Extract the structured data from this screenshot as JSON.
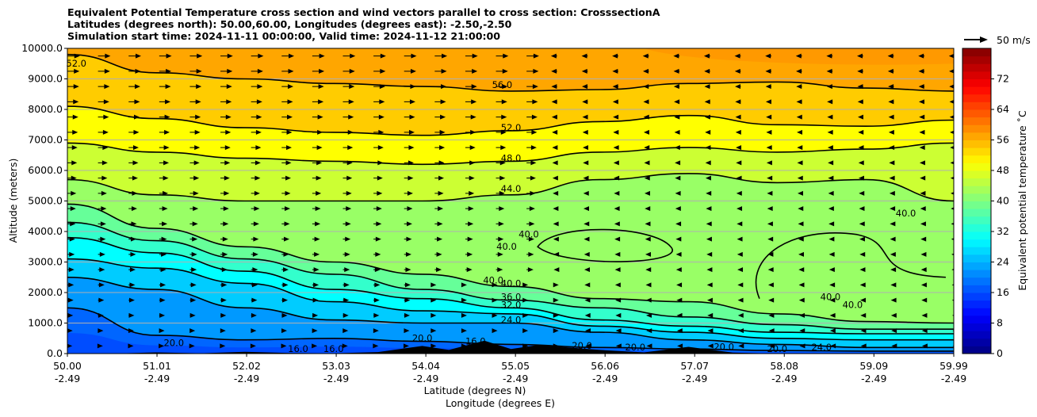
{
  "chart_data": {
    "type": "contourf",
    "title_lines": [
      "Equivalent Potential Temperature cross section and wind vectors parallel to cross section: CrosssectionA",
      "Latitudes (degrees north): 50.00,60.00, Longitudes (degrees east): -2.50,-2.50",
      "Simulation start time: 2024-11-11 00:00:00, Valid time: 2024-11-12 21:00:00"
    ],
    "xlabel": "Latitude (degrees N)",
    "xlabel2": "Longitude (degrees E)",
    "ylabel": "Altitude (meters)",
    "xlim": [
      50.0,
      59.99
    ],
    "ylim": [
      0,
      10000
    ],
    "x_ticks": [
      {
        "lat": "50.00",
        "lon": "-2.49",
        "value": 50.0
      },
      {
        "lat": "51.01",
        "lon": "-2.49",
        "value": 51.01
      },
      {
        "lat": "52.02",
        "lon": "-2.49",
        "value": 52.02
      },
      {
        "lat": "53.03",
        "lon": "-2.49",
        "value": 53.03
      },
      {
        "lat": "54.04",
        "lon": "-2.49",
        "value": 54.04
      },
      {
        "lat": "55.05",
        "lon": "-2.49",
        "value": 55.05
      },
      {
        "lat": "56.06",
        "lon": "-2.49",
        "value": 56.06
      },
      {
        "lat": "57.07",
        "lon": "-2.49",
        "value": 57.07
      },
      {
        "lat": "58.08",
        "lon": "-2.49",
        "value": 58.08
      },
      {
        "lat": "59.09",
        "lon": "-2.49",
        "value": 59.09
      },
      {
        "lat": "59.99",
        "lon": "-2.49",
        "value": 59.99
      }
    ],
    "y_ticks": [
      "0.0",
      "1000.0",
      "2000.0",
      "3000.0",
      "4000.0",
      "5000.0",
      "6000.0",
      "7000.0",
      "8000.0",
      "9000.0",
      "10000.0"
    ],
    "colorbar": {
      "label": "Equivalent potential temperature ˚C",
      "min": 0,
      "max": 80,
      "step": 2,
      "ticks": [
        "0",
        "8",
        "16",
        "24",
        "32",
        "40",
        "48",
        "56",
        "64",
        "72"
      ]
    },
    "quiver_key": {
      "label": "50 m/s"
    },
    "contour_labels": [
      {
        "text": "56.0",
        "x": 54.9,
        "y": 8700
      },
      {
        "text": "52.0",
        "x": 55.0,
        "y": 7300
      },
      {
        "text": "48.0",
        "x": 55.0,
        "y": 6300
      },
      {
        "text": "44.0",
        "x": 55.0,
        "y": 5300
      },
      {
        "text": "40.0",
        "x": 55.2,
        "y": 3800
      },
      {
        "text": "40.0",
        "x": 54.95,
        "y": 3400
      },
      {
        "text": "40.0",
        "x": 54.8,
        "y": 2300
      },
      {
        "text": "40.0",
        "x": 55.0,
        "y": 2200
      },
      {
        "text": "36.0",
        "x": 55.0,
        "y": 1750
      },
      {
        "text": "32.0",
        "x": 55.0,
        "y": 1500
      },
      {
        "text": "24.0",
        "x": 55.0,
        "y": 1000
      },
      {
        "text": "40.0",
        "x": 59.45,
        "y": 4500
      },
      {
        "text": "40.0",
        "x": 58.6,
        "y": 1750
      },
      {
        "text": "40.0",
        "x": 58.85,
        "y": 1500
      },
      {
        "text": "24.0",
        "x": 58.5,
        "y": 100
      },
      {
        "text": "20.0",
        "x": 58.0,
        "y": 50
      },
      {
        "text": "20.0",
        "x": 57.4,
        "y": 120
      },
      {
        "text": "20.0",
        "x": 56.4,
        "y": 100
      },
      {
        "text": "20.0",
        "x": 55.8,
        "y": 150
      },
      {
        "text": "20.0",
        "x": 54.0,
        "y": 400
      },
      {
        "text": "16.0",
        "x": 53.0,
        "y": 50
      },
      {
        "text": "16.0",
        "x": 52.6,
        "y": 50
      },
      {
        "text": "20.0",
        "x": 51.2,
        "y": 250
      },
      {
        "text": "16.0",
        "x": 54.6,
        "y": 300
      },
      {
        "text": "52.0",
        "x": 50.1,
        "y": 9400
      }
    ],
    "series": [
      {
        "name": "56.0",
        "x": [
          50.0,
          51.0,
          52.0,
          53.0,
          54.0,
          55.0,
          56.0,
          57.0,
          58.0,
          59.0,
          59.99
        ],
        "y": [
          9800,
          9200,
          9000,
          8850,
          8750,
          8600,
          8650,
          8850,
          8900,
          8700,
          8600
        ]
      },
      {
        "name": "52.0",
        "x": [
          50.0,
          51.0,
          52.0,
          53.0,
          54.0,
          55.0,
          56.0,
          57.0,
          58.0,
          59.0,
          59.99
        ],
        "y": [
          8100,
          7700,
          7400,
          7250,
          7150,
          7300,
          7600,
          7800,
          7500,
          7450,
          7650
        ]
      },
      {
        "name": "48.0",
        "x": [
          50.0,
          51.0,
          52.0,
          53.0,
          54.0,
          55.0,
          56.0,
          57.0,
          58.0,
          59.0,
          59.99
        ],
        "y": [
          6900,
          6600,
          6400,
          6300,
          6200,
          6300,
          6600,
          6750,
          6600,
          6700,
          6900
        ]
      },
      {
        "name": "44.0",
        "x": [
          50.0,
          51.0,
          52.0,
          53.0,
          54.0,
          55.0,
          56.0,
          57.0,
          58.0,
          59.0,
          59.99
        ],
        "y": [
          5700,
          5200,
          5000,
          5000,
          5000,
          5200,
          5700,
          5900,
          5600,
          5700,
          5000
        ]
      },
      {
        "name": "40.0",
        "x": [
          50.0,
          51.0,
          52.0,
          53.0,
          54.0,
          55.0,
          56.0,
          57.0,
          58.0,
          59.0,
          59.99
        ],
        "y": [
          4900,
          4100,
          3500,
          3000,
          2600,
          2200,
          1800,
          1700,
          1300,
          1050,
          1000
        ]
      },
      {
        "name": "36.0",
        "x": [
          50.0,
          51.0,
          52.0,
          53.0,
          54.0,
          55.0,
          56.0,
          57.0,
          58.0,
          59.0,
          59.99
        ],
        "y": [
          4300,
          3700,
          3100,
          2600,
          2100,
          1750,
          1500,
          1200,
          950,
          800,
          800
        ]
      },
      {
        "name": "32.0",
        "x": [
          50.0,
          51.0,
          52.0,
          53.0,
          54.0,
          55.0,
          56.0,
          57.0,
          58.0,
          59.0,
          59.99
        ],
        "y": [
          3800,
          3300,
          2700,
          2100,
          1800,
          1500,
          1100,
          900,
          700,
          650,
          650
        ]
      },
      {
        "name": "28.0",
        "x": [
          50.0,
          51.0,
          52.0,
          53.0,
          54.0,
          55.0,
          56.0,
          57.0,
          58.0,
          59.0,
          59.99
        ],
        "y": [
          3100,
          2800,
          2300,
          1700,
          1400,
          1300,
          900,
          700,
          500,
          450,
          450
        ]
      },
      {
        "name": "24.0",
        "x": [
          50.0,
          51.0,
          52.0,
          53.0,
          54.0,
          55.0,
          56.0,
          57.0,
          58.0,
          59.0,
          59.99
        ],
        "y": [
          2500,
          2100,
          1500,
          1100,
          1000,
          1000,
          700,
          450,
          300,
          200,
          200
        ]
      },
      {
        "name": "20.0",
        "x": [
          50.0,
          51.0,
          52.0,
          53.0,
          54.0,
          55.0,
          56.0,
          57.0,
          58.0,
          59.0,
          59.99
        ],
        "y": [
          1500,
          600,
          450,
          500,
          400,
          300,
          200,
          150,
          100,
          80,
          80
        ]
      }
    ]
  }
}
